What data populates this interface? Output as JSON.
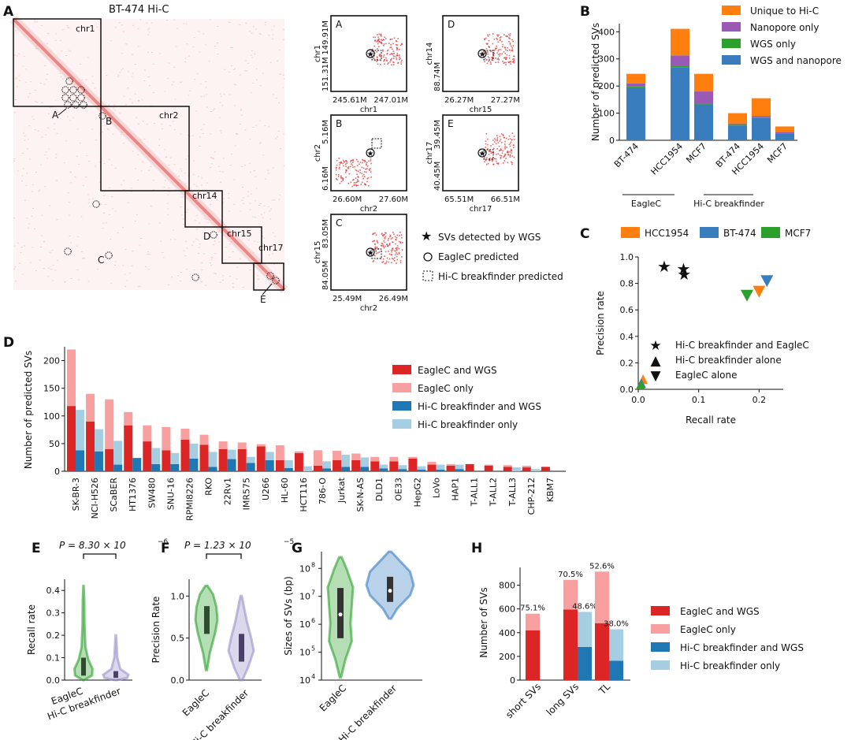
{
  "figure": {
    "colors": {
      "orange": "#ff7f0e",
      "purple": "#9b59b6",
      "green": "#2ca02c",
      "blue": "#3a7dbf",
      "red": "#dc2626",
      "pink": "#f8a0a0",
      "dblue": "#1f77b4",
      "lblue": "#a6cee3"
    },
    "panelA": {
      "letter": "A",
      "title": "BT-474 Hi-C",
      "chroms": [
        "chr1",
        "chr2",
        "chr14",
        "chr15",
        "chr17"
      ],
      "markers": [
        "A",
        "B",
        "C",
        "D",
        "E"
      ],
      "zooms": [
        {
          "letter": "A",
          "ytop": "149.91M",
          "ybot": "151.31M",
          "ychr": "chr1",
          "xl": "245.61M",
          "xr": "247.01M",
          "xchr": "chr1"
        },
        {
          "letter": "D",
          "ytop": "",
          "ybot": "88.74M",
          "ychr": "chr14",
          "xl": "26.27M",
          "xr": "27.27M",
          "xchr": "chr15"
        },
        {
          "letter": "B",
          "ytop": "5.16M",
          "ybot": "6.16M",
          "ychr": "chr2",
          "xl": "26.60M",
          "xr": "27.60M",
          "xchr": "chr2"
        },
        {
          "letter": "E",
          "ytop": "39.45M",
          "ybot": "40.45M",
          "ychr": "chr17",
          "xl": "65.51M",
          "xr": "66.51M",
          "xchr": "chr17"
        },
        {
          "letter": "C",
          "ytop": "83.05M",
          "ybot": "84.05M",
          "ychr": "chr15",
          "xl": "25.49M",
          "xr": "26.49M",
          "xchr": "chr2"
        }
      ],
      "legend": [
        "SVs detected by WGS",
        "EagleC predicted",
        "Hi-C breakfinder predicted"
      ]
    }
  },
  "chart_data": [
    {
      "id": "B",
      "type": "bar",
      "letter": "B",
      "ylabel": "Number of predicted SVs",
      "ylim": [
        0,
        430
      ],
      "yticks": [
        0,
        100,
        200,
        300,
        400
      ],
      "categories": [
        "BT-474",
        "HCC1954",
        "MCF7",
        "BT-474",
        "HCC1954",
        "MCF7"
      ],
      "groups": [
        "EagleC",
        "Hi-C breakfinder"
      ],
      "series": [
        {
          "name": "WGS and nanopore",
          "color": "#3a7dbf",
          "values": [
            195,
            268,
            132,
            55,
            82,
            25
          ]
        },
        {
          "name": "WGS only",
          "color": "#2ca02c",
          "values": [
            5,
            5,
            3,
            2,
            3,
            1
          ]
        },
        {
          "name": "Nanopore only",
          "color": "#9b59b6",
          "values": [
            10,
            40,
            45,
            5,
            5,
            5
          ]
        },
        {
          "name": "Unique to Hi-C",
          "color": "#ff7f0e",
          "values": [
            35,
            98,
            65,
            38,
            65,
            20
          ]
        }
      ],
      "legend_order": [
        "Unique to Hi-C",
        "Nanopore only",
        "WGS only",
        "WGS and nanopore"
      ]
    },
    {
      "id": "C",
      "type": "scatter",
      "letter": "C",
      "xlabel": "Recall rate",
      "ylabel": "Precision rate",
      "xlim": [
        0,
        0.24
      ],
      "ylim": [
        0,
        1.0
      ],
      "xticks": [
        0.0,
        0.1,
        0.2
      ],
      "yticks": [
        0.0,
        0.2,
        0.4,
        0.6,
        0.8,
        1.0
      ],
      "series": [
        {
          "name": "HCC1954",
          "color": "#ff7f0e"
        },
        {
          "name": "BT-474",
          "color": "#3a7dbf"
        },
        {
          "name": "MCF7",
          "color": "#2ca02c"
        }
      ],
      "points": [
        {
          "cell": "MCF7",
          "method": "both",
          "x": 0.043,
          "y": 0.93
        },
        {
          "cell": "BT-474",
          "method": "both",
          "x": 0.075,
          "y": 0.91
        },
        {
          "cell": "HCC1954",
          "method": "both",
          "x": 0.076,
          "y": 0.87
        },
        {
          "cell": "BT-474",
          "method": "eaglec",
          "x": 0.213,
          "y": 0.82
        },
        {
          "cell": "HCC1954",
          "method": "eaglec",
          "x": 0.2,
          "y": 0.74
        },
        {
          "cell": "MCF7",
          "method": "eaglec",
          "x": 0.18,
          "y": 0.71
        },
        {
          "cell": "HCC1954",
          "method": "breakfinder",
          "x": 0.008,
          "y": 0.07
        },
        {
          "cell": "BT-474",
          "method": "breakfinder",
          "x": 0.005,
          "y": 0.04
        },
        {
          "cell": "MCF7",
          "method": "breakfinder",
          "x": 0.004,
          "y": 0.03
        }
      ],
      "marker_legend": [
        "Hi-C breakfinder and EagleC",
        "Hi-C breakfinder alone",
        "EagleC alone"
      ]
    },
    {
      "id": "D",
      "type": "bar",
      "letter": "D",
      "ylabel": "Number of predicted SVs",
      "ylim": [
        0,
        225
      ],
      "yticks": [
        0,
        50,
        100,
        150,
        200
      ],
      "categories": [
        "SK-BR-3",
        "NCI-H526",
        "SCaBER",
        "HT1376",
        "SW480",
        "SNU-16",
        "RPMI8226",
        "RKO",
        "22Rv1",
        "IMR575",
        "U266",
        "HL-60",
        "HCT116",
        "786-O",
        "Jurkat",
        "SK-N-AS",
        "DLD1",
        "OE33",
        "HepG2",
        "LoVo",
        "HAP1",
        "T-ALL1",
        "T-ALL2",
        "T-ALL3",
        "CHP-212",
        "KBM7"
      ],
      "series": [
        {
          "name": "EagleC and WGS",
          "color": "#dc2626",
          "values": [
            118,
            90,
            40,
            83,
            54,
            38,
            57,
            48,
            40,
            40,
            45,
            20,
            33,
            10,
            20,
            20,
            18,
            18,
            23,
            12,
            10,
            13,
            10,
            8,
            7,
            8
          ]
        },
        {
          "name": "EagleC only",
          "color": "#f8a0a0",
          "values": [
            102,
            50,
            90,
            24,
            29,
            42,
            20,
            18,
            14,
            12,
            4,
            27,
            3,
            28,
            17,
            12,
            8,
            8,
            3,
            5,
            3,
            0,
            2,
            3,
            3,
            0
          ]
        },
        {
          "name": "Hi-C breakfinder and WGS",
          "color": "#1f77b4",
          "values": [
            38,
            36,
            12,
            24,
            13,
            13,
            23,
            8,
            22,
            15,
            20,
            6,
            0,
            5,
            8,
            8,
            5,
            4,
            3,
            3,
            4,
            0,
            0,
            0,
            0,
            0
          ]
        },
        {
          "name": "Hi-C breakfinder only",
          "color": "#a6cee3",
          "values": [
            73,
            40,
            43,
            0,
            29,
            20,
            27,
            27,
            17,
            11,
            15,
            14,
            9,
            13,
            22,
            17,
            7,
            7,
            6,
            9,
            8,
            0,
            0,
            7,
            4,
            0
          ]
        }
      ]
    },
    {
      "id": "E",
      "type": "violin",
      "letter": "E",
      "ylabel": "Recall rate",
      "ylim": [
        0,
        0.45
      ],
      "yticks": [
        0.0,
        0.1,
        0.2,
        0.3,
        0.4
      ],
      "categories": [
        "EagleC",
        "Hi-C breakfinder"
      ],
      "pvalue": "P = 8.30 × 10",
      "pexp": "−6",
      "colors": [
        "#2ca02c",
        "#9b8fc9"
      ]
    },
    {
      "id": "F",
      "type": "violin",
      "letter": "F",
      "ylabel": "Precision Rate",
      "ylim": [
        0,
        1.2
      ],
      "yticks": [
        0.0,
        0.5,
        1.0
      ],
      "categories": [
        "EagleC",
        "Hi-C breakfinder"
      ],
      "pvalue": "P = 1.23 × 10",
      "pexp": "−5",
      "colors": [
        "#2ca02c",
        "#9b8fc9"
      ]
    },
    {
      "id": "G",
      "type": "violin",
      "letter": "G",
      "ylabel": "Sizes of SVs (bp)",
      "ylim": [
        4,
        8.6
      ],
      "yticks": [
        {
          "b": "10",
          "e": "4"
        },
        {
          "b": "10",
          "e": "5"
        },
        {
          "b": "10",
          "e": "6"
        },
        {
          "b": "10",
          "e": "7"
        },
        {
          "b": "10",
          "e": "8"
        }
      ],
      "categories": [
        "EagleC",
        "Hi-C breakfinder"
      ],
      "colors": [
        "#2ca02c",
        "#3a7dbf"
      ]
    },
    {
      "id": "H",
      "type": "bar",
      "letter": "H",
      "ylabel": "Number of SVs",
      "ylim": [
        0,
        950
      ],
      "yticks": [
        0,
        200,
        400,
        600,
        800
      ],
      "categories": [
        "short SVs",
        "long SVs",
        "TL"
      ],
      "eaglec": [
        {
          "wgs": 420,
          "only": 140,
          "label": "75.1%"
        },
        {
          "wgs": 595,
          "only": 250,
          "label": "70.5%"
        },
        {
          "wgs": 480,
          "only": 435,
          "label": "52.6%"
        }
      ],
      "breakfinder": [
        {
          "wgs": 0,
          "only": 0,
          "label": ""
        },
        {
          "wgs": 280,
          "only": 295,
          "label": "48.6%"
        },
        {
          "wgs": 163,
          "only": 265,
          "label": "38.0%"
        }
      ],
      "legend": [
        "EagleC and WGS",
        "EagleC only",
        "Hi-C breakfinder and WGS",
        "Hi-C breakfinder only"
      ]
    }
  ]
}
